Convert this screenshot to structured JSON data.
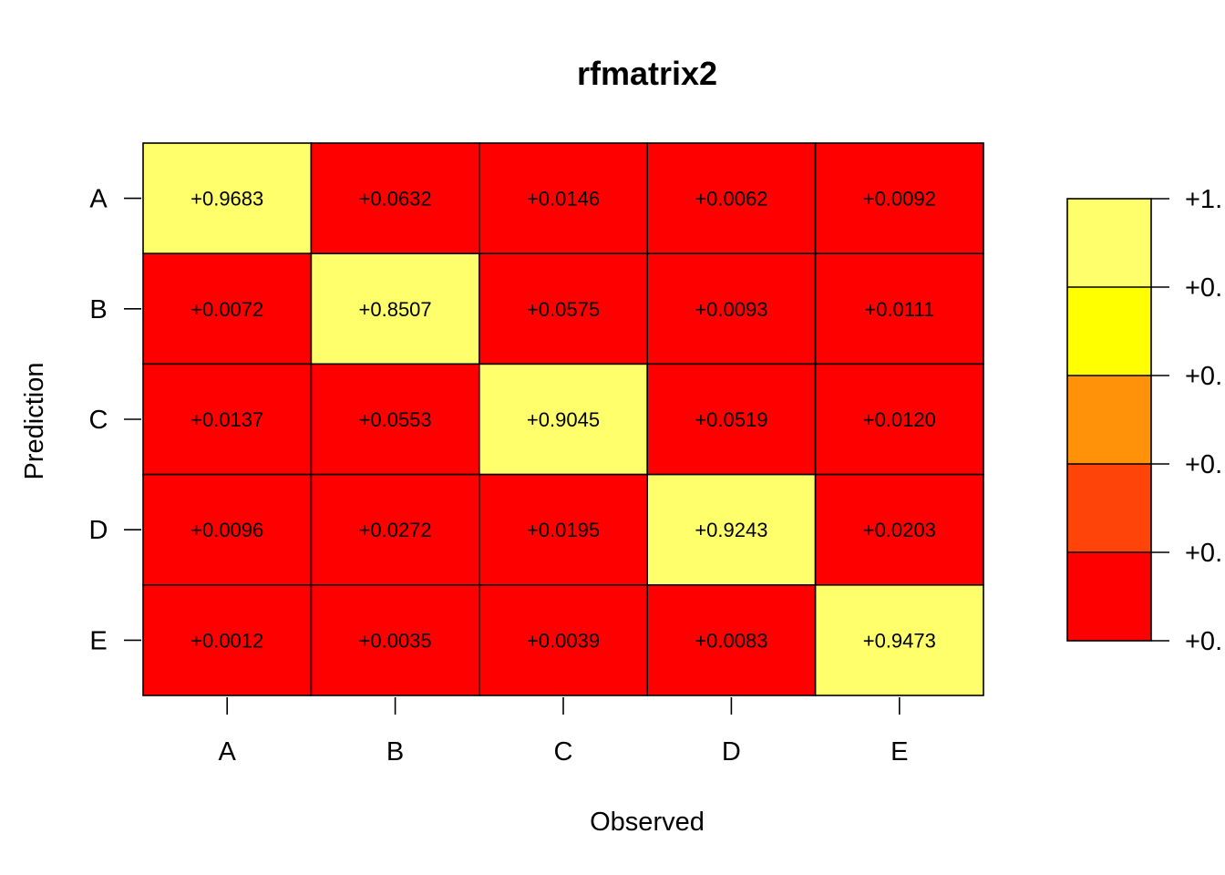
{
  "chart_data": {
    "type": "heatmap",
    "title": "rfmatrix2",
    "xlabel": "Observed",
    "ylabel": "Prediction",
    "x_categories": [
      "A",
      "B",
      "C",
      "D",
      "E"
    ],
    "y_categories": [
      "A",
      "B",
      "C",
      "D",
      "E"
    ],
    "values": [
      [
        0.9683,
        0.0632,
        0.0146,
        0.0062,
        0.0092
      ],
      [
        0.0072,
        0.8507,
        0.0575,
        0.0093,
        0.0111
      ],
      [
        0.0137,
        0.0553,
        0.9045,
        0.0519,
        0.012
      ],
      [
        0.0096,
        0.0272,
        0.0195,
        0.9243,
        0.0203
      ],
      [
        0.0012,
        0.0035,
        0.0039,
        0.0083,
        0.9473
      ]
    ],
    "value_labels": [
      [
        "+0.9683",
        "+0.0632",
        "+0.0146",
        "+0.0062",
        "+0.0092"
      ],
      [
        "+0.0072",
        "+0.8507",
        "+0.0575",
        "+0.0093",
        "+0.0111"
      ],
      [
        "+0.0137",
        "+0.0553",
        "+0.9045",
        "+0.0519",
        "+0.0120"
      ],
      [
        "+0.0096",
        "+0.0272",
        "+0.0195",
        "+0.9243",
        "+0.0203"
      ],
      [
        "+0.0012",
        "+0.0035",
        "+0.0039",
        "+0.0083",
        "+0.9473"
      ]
    ],
    "color_scale": {
      "breaks": [
        0.0,
        0.2,
        0.4,
        0.6,
        0.8,
        1.0
      ],
      "colors": [
        "#FF0000",
        "#FF4409",
        "#FF9209",
        "#FFFF00",
        "#FFFF6B"
      ],
      "tick_labels": [
        "+0.",
        "+0.",
        "+0.",
        "+0.",
        "+0.",
        "+1."
      ]
    },
    "grid": false,
    "legend": "right"
  }
}
